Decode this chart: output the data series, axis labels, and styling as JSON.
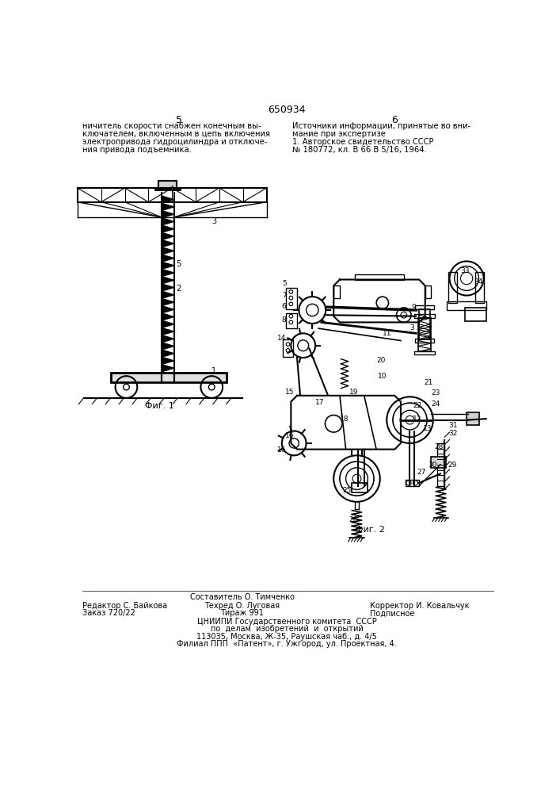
{
  "patent_number": "650934",
  "page_left": "5",
  "page_right": "6",
  "left_column_text": [
    "ничитель скорости снабжен конечным вы-",
    "ключателем, включенным в цепь включения",
    "электропривода гидроцилиндра и отключе-",
    "ния привода подъемника."
  ],
  "right_column_text": [
    "Источники информации, принятые во вни-",
    "мание при экспертизе",
    "1. Авторское свидетельство СССР",
    "№ 180772, кл. В 66 В 5/16, 1964."
  ],
  "fig1_label": "Фиг. 1",
  "fig2_label": "Фиг. 2",
  "footer_left_line1": "Редактор С. Байкова",
  "footer_left_line2": "Заказ 720/22",
  "footer_center_line1": "Составитель О. Тимченко",
  "footer_center_line2": "Техред О. Луговая",
  "footer_center_line3": "Тираж 991",
  "footer_right_line1": "Корректор И. Ковальчук",
  "footer_right_line2": "Подписное",
  "footer_bottom_line1": "ЦНИИПИ Государственного комитета  СССР",
  "footer_bottom_line2": "по  делам  изобретений  и  открытий",
  "footer_bottom_line3": "113035, Москва, Ж-35, Раушская чаб., д. 4/5",
  "footer_bottom_line4": "Филиал ППП  «Патент», г. Ужгород, ул. Проектная, 4.",
  "bg_color": "#ffffff",
  "text_color": "#000000",
  "line_color": "#000000"
}
